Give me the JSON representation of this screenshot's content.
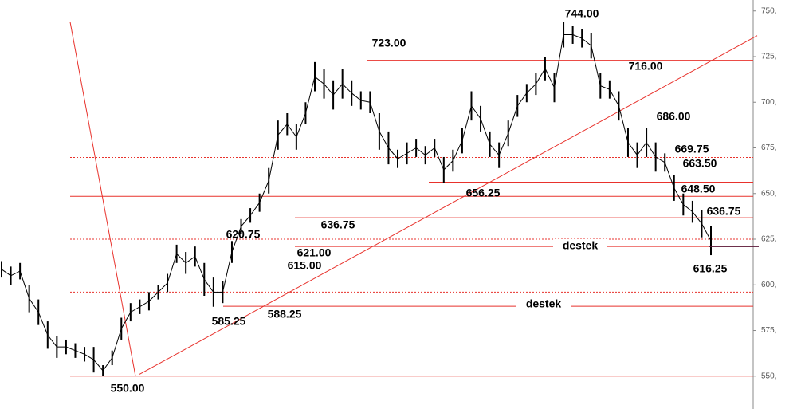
{
  "chart_data": {
    "type": "ohlc",
    "ylim": [
      532,
      756
    ],
    "yticks": [
      {
        "value": 750,
        "label": "750,"
      },
      {
        "value": 725,
        "label": "725,"
      },
      {
        "value": 700,
        "label": "700,"
      },
      {
        "value": 675,
        "label": "675,"
      },
      {
        "value": 650,
        "label": "650,"
      },
      {
        "value": 625,
        "label": "625,"
      },
      {
        "value": 600,
        "label": "600,"
      },
      {
        "value": 575,
        "label": "575,"
      },
      {
        "value": 550,
        "label": "550,"
      }
    ],
    "color": "#000000",
    "level_color": "#e8322c",
    "highs": [
      613,
      610,
      612,
      600,
      592,
      580,
      572,
      570,
      568,
      566,
      566,
      556,
      564,
      582,
      590,
      592,
      596,
      600,
      606,
      622,
      618,
      621,
      612,
      604,
      602,
      624,
      636,
      642,
      650,
      664,
      690,
      694,
      688,
      700,
      722,
      718,
      712,
      718,
      712,
      706,
      706,
      694,
      684,
      674,
      678,
      680,
      676,
      680,
      670,
      674,
      686,
      706,
      698,
      684,
      678,
      690,
      704,
      710,
      716,
      725,
      716,
      744,
      742,
      740,
      738,
      716,
      712,
      706,
      686,
      678,
      686,
      678,
      672,
      660,
      650,
      646,
      641,
      632
    ],
    "lows": [
      604,
      600,
      603,
      585,
      578,
      565,
      560,
      562,
      560,
      558,
      552,
      550,
      556,
      570,
      580,
      584,
      586,
      592,
      596,
      612,
      606,
      610,
      594,
      588,
      590,
      612,
      628,
      634,
      640,
      650,
      674,
      682,
      674,
      688,
      706,
      702,
      696,
      702,
      698,
      696,
      694,
      674,
      666,
      664,
      666,
      670,
      666,
      670,
      656,
      662,
      672,
      690,
      684,
      670,
      664,
      676,
      692,
      700,
      704,
      712,
      700,
      730,
      732,
      730,
      724,
      702,
      702,
      690,
      670,
      664,
      670,
      662,
      662,
      646,
      638,
      634,
      626,
      616.25
    ],
    "levels": [
      {
        "value": 744,
        "style": "solid"
      },
      {
        "value": 723,
        "style": "solid"
      },
      {
        "value": 669.75,
        "style": "dotted"
      },
      {
        "value": 656.25,
        "style": "solid"
      },
      {
        "value": 648.5,
        "style": "solid"
      },
      {
        "value": 636.75,
        "style": "solid"
      },
      {
        "value": 625,
        "style": "dotted"
      },
      {
        "value": 621,
        "style": "solid"
      },
      {
        "value": 596,
        "style": "dotted"
      },
      {
        "value": 588.25,
        "style": "solid"
      },
      {
        "value": 550,
        "style": "solid"
      }
    ],
    "trendlines": [
      [
        744,
        550
      ],
      [
        551,
        736.5
      ]
    ],
    "annotations": {
      "values": [
        744,
        723,
        716,
        686,
        669.75,
        663.5,
        648.5,
        636.75,
        620.75,
        621,
        615,
        636.75,
        656.25,
        585.25,
        588.25,
        616.25,
        550
      ],
      "value_labels": [
        "744.00",
        "723.00",
        "716.00",
        "686.00",
        "669.75",
        "663.50",
        "648.50",
        "636.75",
        "620.75",
        "621.00",
        "615.00",
        "636.75",
        "656.25",
        "585.25",
        "588.25",
        "616.25",
        "550.00"
      ]
    },
    "notes": [
      "destek",
      "destek"
    ]
  }
}
